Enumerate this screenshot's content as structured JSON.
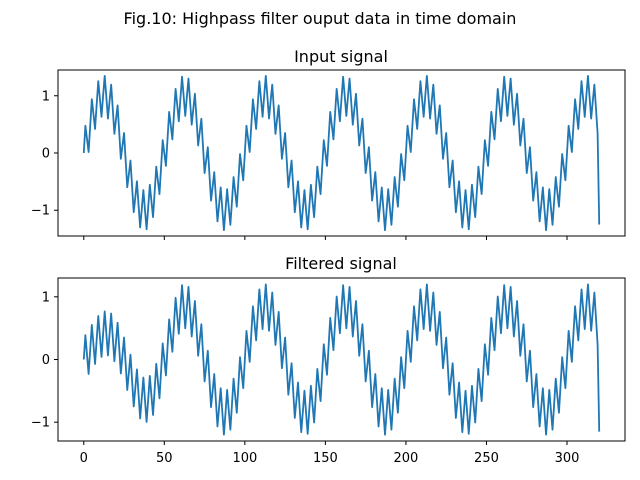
{
  "figure": {
    "suptitle": "Fig.10: Highpass filter ouput data in time domain"
  },
  "chart_data": [
    {
      "type": "line",
      "title": "Input signal",
      "xlabel": "",
      "ylabel": "",
      "xlim": [
        -16,
        336
      ],
      "ylim": [
        -1.45,
        1.45
      ],
      "xticks": [
        0,
        50,
        100,
        150,
        200,
        250,
        300
      ],
      "xtick_labels_visible": false,
      "yticks": [
        -1,
        0,
        1
      ],
      "ytick_labels": [
        "−1",
        "0",
        "1"
      ],
      "grid": false,
      "legend": "none",
      "series": [
        {
          "color": "#1f77b4",
          "x_range": [
            0,
            320
          ],
          "points": 321,
          "components": [
            {
              "amplitude": 1.0,
              "period": 50,
              "phase": 0
            },
            {
              "amplitude": 0.35,
              "period": 4,
              "phase": 0
            }
          ],
          "y_start": 0.0,
          "y_end": -1.25
        }
      ]
    },
    {
      "type": "line",
      "title": "Filtered signal",
      "xlabel": "",
      "ylabel": "",
      "xlim": [
        -16,
        336
      ],
      "ylim": [
        -1.3,
        1.3
      ],
      "xticks": [
        0,
        50,
        100,
        150,
        200,
        250,
        300
      ],
      "xtick_labels": [
        "0",
        "50",
        "100",
        "150",
        "200",
        "250",
        "300"
      ],
      "yticks": [
        -1,
        0,
        1
      ],
      "ytick_labels": [
        "−1",
        "0",
        "1"
      ],
      "grid": false,
      "legend": "none",
      "series": [
        {
          "color": "#1f77b4",
          "x_range": [
            0,
            320
          ],
          "points": 321,
          "components": [
            {
              "amplitude": 0.85,
              "period": 50,
              "phase": 0,
              "rise_time": 60
            },
            {
              "amplitude": 0.35,
              "period": 4,
              "phase": 0
            }
          ],
          "y_start": 0.0,
          "y_end": -1.15
        }
      ]
    }
  ]
}
